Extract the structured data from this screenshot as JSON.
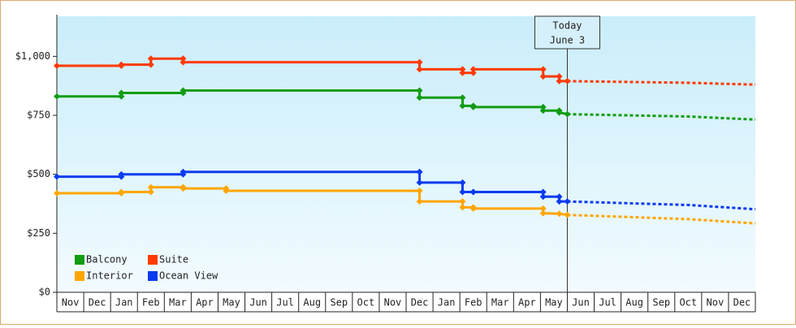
{
  "chart_data": {
    "type": "line",
    "categories": [
      "Nov",
      "Dec",
      "Jan",
      "Feb",
      "Mar",
      "Apr",
      "May",
      "Jun",
      "Jul",
      "Aug",
      "Sep",
      "Oct",
      "Nov",
      "Dec",
      "Jan",
      "Feb",
      "Mar",
      "Apr",
      "May",
      "Jun",
      "Jul",
      "Aug",
      "Sep",
      "Oct",
      "Nov",
      "Dec"
    ],
    "xlim": [
      0,
      26
    ],
    "ylim": [
      0,
      1170
    ],
    "yticks": [
      {
        "value": 0,
        "label": "$0"
      },
      {
        "value": 250,
        "label": "$250"
      },
      {
        "value": 500,
        "label": "$500"
      },
      {
        "value": 750,
        "label": "$750"
      },
      {
        "value": 1000,
        "label": "$1,000"
      }
    ],
    "legend": "lower left",
    "annotation": {
      "x": 19,
      "lines": [
        "Today",
        "June 3"
      ]
    },
    "series": [
      {
        "name": "Balcony",
        "color": "#129c12",
        "x": [
          0,
          2.4,
          2.4,
          4.7,
          4.7,
          13.5,
          13.5,
          15.1,
          15.1,
          15.5,
          15.5,
          18.1,
          18.1,
          18.7,
          18.7,
          19.0
        ],
        "values": [
          830,
          830,
          845,
          845,
          855,
          855,
          825,
          825,
          790,
          790,
          785,
          785,
          770,
          770,
          762,
          755
        ],
        "forecast_x": [
          19.0,
          23.5,
          26
        ],
        "forecast_values": [
          755,
          745,
          732
        ]
      },
      {
        "name": "Suite",
        "color": "#ff3a00",
        "x": [
          0,
          2.4,
          2.4,
          3.5,
          3.5,
          4.7,
          4.7,
          13.5,
          13.5,
          15.1,
          15.1,
          15.5,
          15.5,
          18.1,
          18.1,
          18.7,
          18.7,
          19.0
        ],
        "values": [
          960,
          960,
          965,
          965,
          990,
          990,
          975,
          975,
          945,
          945,
          930,
          930,
          945,
          945,
          915,
          915,
          895,
          895
        ],
        "forecast_x": [
          19.0,
          23.5,
          26
        ],
        "forecast_values": [
          895,
          888,
          880
        ]
      },
      {
        "name": "Interior",
        "color": "#ffa500",
        "x": [
          0,
          2.4,
          2.4,
          3.5,
          3.5,
          4.7,
          4.7,
          6.3,
          6.3,
          13.5,
          13.5,
          15.1,
          15.1,
          15.5,
          15.5,
          18.1,
          18.1,
          18.7,
          19.0
        ],
        "values": [
          420,
          420,
          425,
          425,
          445,
          445,
          440,
          440,
          430,
          430,
          385,
          385,
          360,
          360,
          355,
          355,
          335,
          333,
          328
        ],
        "forecast_x": [
          19.0,
          23.5,
          26
        ],
        "forecast_values": [
          328,
          310,
          292
        ]
      },
      {
        "name": "Ocean View",
        "color": "#0a3bef",
        "x": [
          0,
          2.4,
          2.4,
          4.7,
          4.7,
          13.5,
          13.5,
          15.1,
          15.1,
          15.5,
          15.5,
          18.1,
          18.1,
          18.7,
          18.7,
          19.0
        ],
        "values": [
          490,
          490,
          500,
          500,
          510,
          510,
          465,
          465,
          425,
          425,
          425,
          425,
          405,
          405,
          385,
          385
        ],
        "forecast_x": [
          19.0,
          23.5,
          26
        ],
        "forecast_values": [
          385,
          370,
          352
        ]
      }
    ]
  }
}
